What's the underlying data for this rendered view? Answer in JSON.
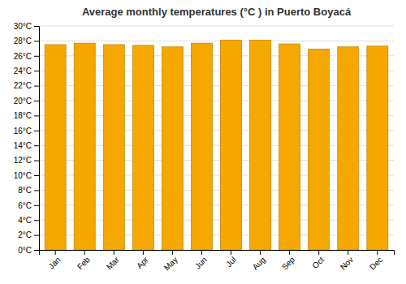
{
  "chart_data": {
    "type": "bar",
    "title": "Average monthly temperatures (°C ) in Puerto Boyacá",
    "categories": [
      "Jan",
      "Feb",
      "Mar",
      "Apr",
      "May",
      "Jun",
      "Jul",
      "Aug",
      "Sep",
      "Oct",
      "Nov",
      "Dec"
    ],
    "values": [
      27.5,
      27.7,
      27.5,
      27.4,
      27.2,
      27.7,
      28.1,
      28.1,
      27.6,
      26.9,
      27.2,
      27.3
    ],
    "color": "#F5A800",
    "ylim": [
      0,
      30
    ],
    "yticks": [
      {
        "value": 0,
        "label": "0°C"
      },
      {
        "value": 2,
        "label": "2°C"
      },
      {
        "value": 4,
        "label": "4°C"
      },
      {
        "value": 6,
        "label": "6°C"
      },
      {
        "value": 8,
        "label": "8°C"
      },
      {
        "value": 10,
        "label": "10°C"
      },
      {
        "value": 12,
        "label": "12°C"
      },
      {
        "value": 14,
        "label": "14°C"
      },
      {
        "value": 16,
        "label": "16°C"
      },
      {
        "value": 18,
        "label": "18°C"
      },
      {
        "value": 20,
        "label": "20°C"
      },
      {
        "value": 22,
        "label": "22°C"
      },
      {
        "value": 24,
        "label": "24°C"
      },
      {
        "value": 26,
        "label": "26°C"
      },
      {
        "value": 28,
        "label": "28°C"
      },
      {
        "value": 30,
        "label": "30°C"
      }
    ],
    "grid": true
  }
}
